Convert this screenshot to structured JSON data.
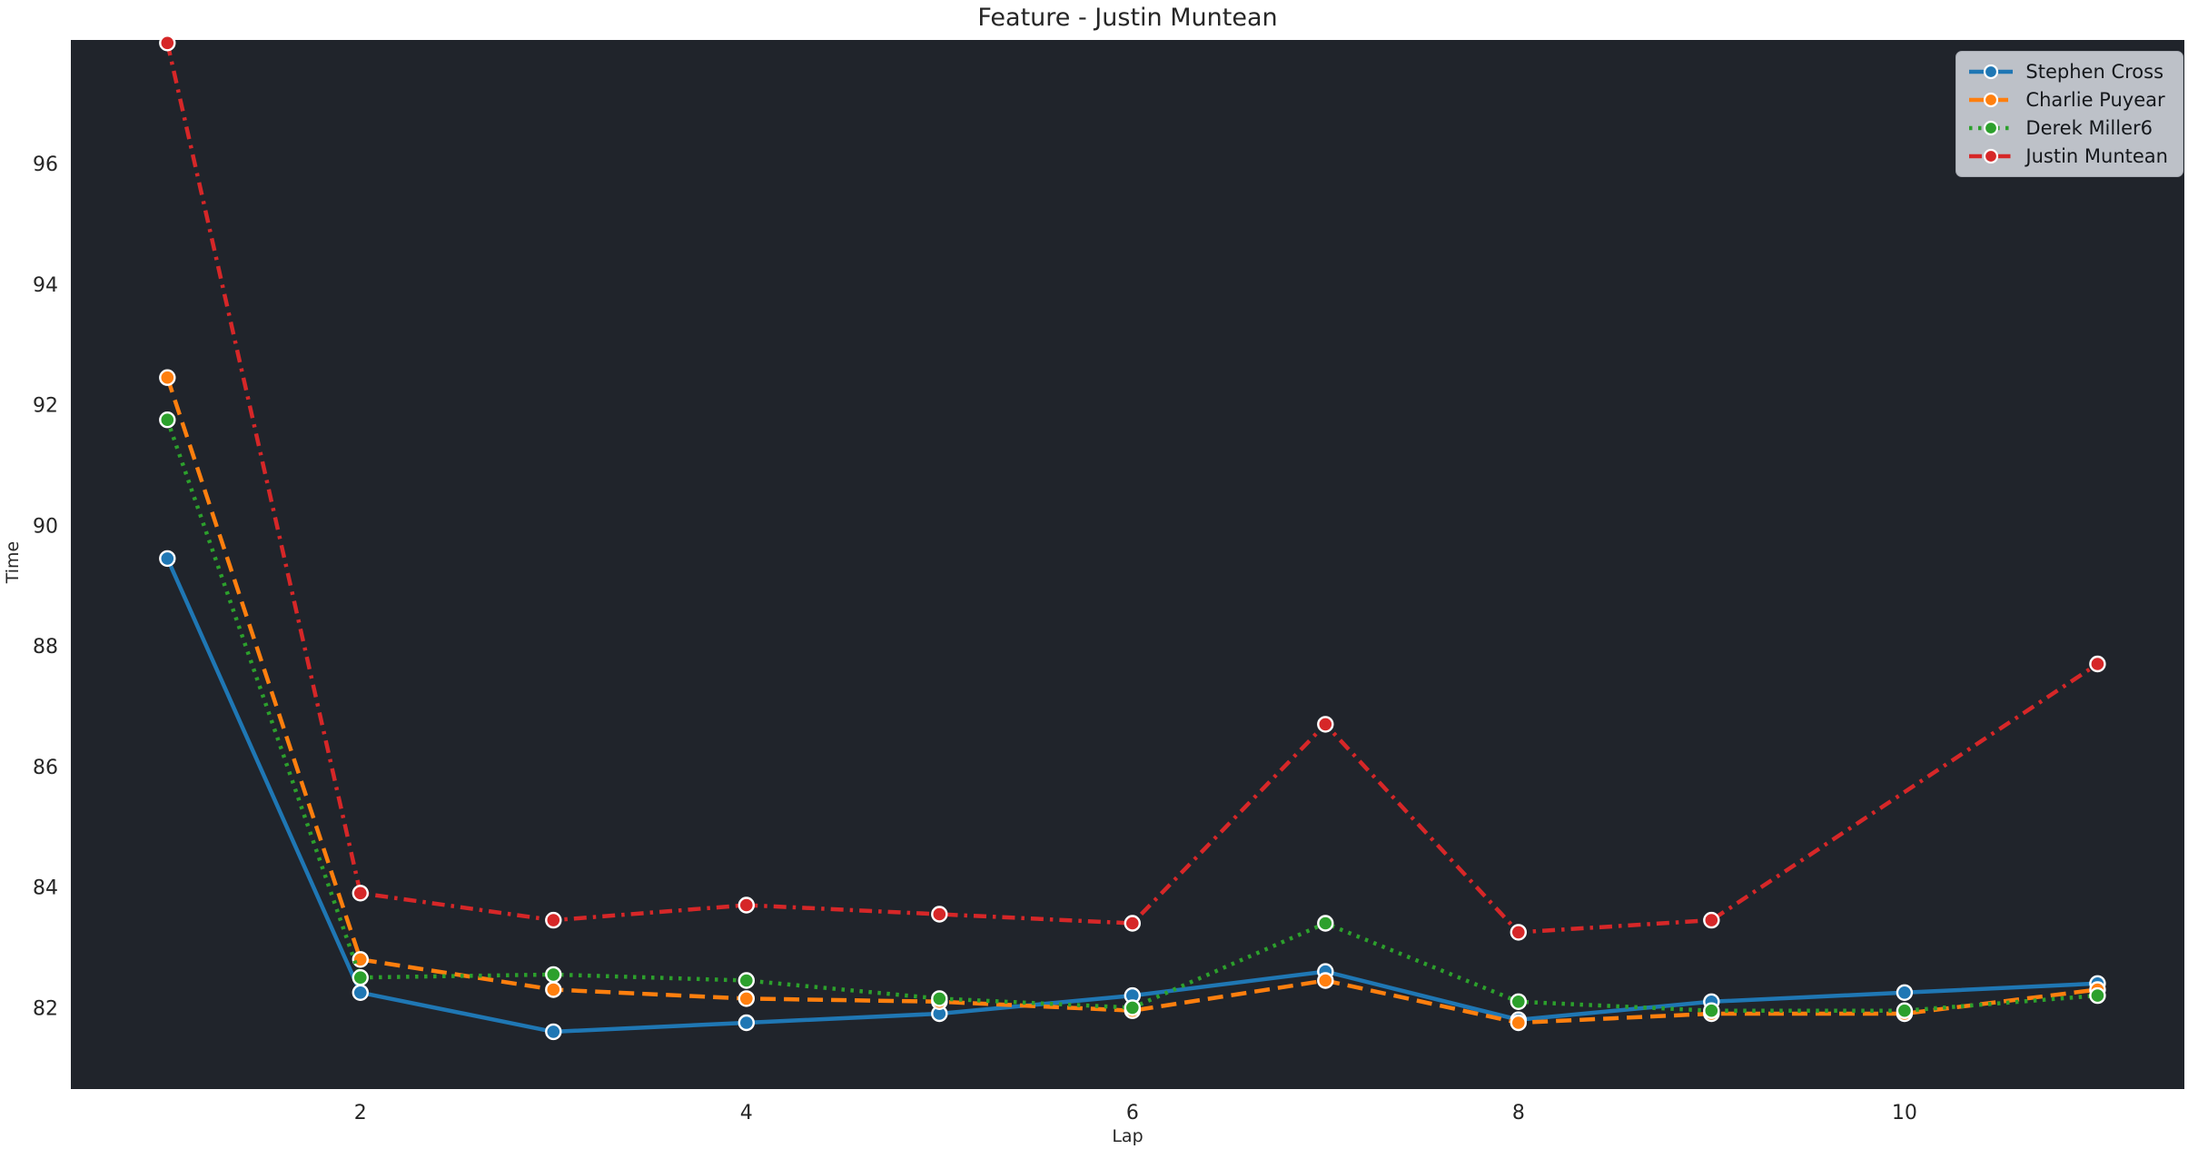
{
  "title": "Feature - Justin Muntean",
  "plot": {
    "bg_color": "#20242b",
    "fig_bg_color": "#ffffff",
    "text_color": "#262626",
    "legend_bg_color": "#cbcfd6",
    "marker_edge_color": "#ffffff"
  },
  "chart_data": {
    "type": "line",
    "title": "Feature - Justin Muntean",
    "xlabel": "Lap",
    "ylabel": "Time",
    "x": [
      1,
      2,
      3,
      4,
      5,
      6,
      7,
      8,
      9,
      10,
      11
    ],
    "xticks": [
      2,
      4,
      6,
      8,
      10
    ],
    "yticks": [
      82,
      84,
      86,
      88,
      90,
      92,
      94,
      96
    ],
    "xlim": [
      0.5,
      11.45
    ],
    "ylim": [
      80.65,
      98.05
    ],
    "grid": false,
    "legend_position": "upper right",
    "series": [
      {
        "name": "Stephen Cross",
        "color": "#1f77b4",
        "dash": "solid",
        "values": [
          89.45,
          82.25,
          81.6,
          81.75,
          81.9,
          82.2,
          82.6,
          81.8,
          82.1,
          82.25,
          82.4
        ]
      },
      {
        "name": "Charlie Puyear",
        "color": "#ff7f0e",
        "dash": "dashed",
        "values": [
          92.45,
          82.8,
          82.3,
          82.15,
          82.1,
          81.95,
          82.45,
          81.75,
          81.9,
          81.9,
          82.3
        ]
      },
      {
        "name": "Derek Miller6",
        "color": "#2ca02c",
        "dash": "dotted",
        "values": [
          91.75,
          82.5,
          82.55,
          82.45,
          82.15,
          82.0,
          83.4,
          82.1,
          81.95,
          81.95,
          82.2
        ]
      },
      {
        "name": "Justin Muntean",
        "color": "#d62728",
        "dash": "dashdot",
        "values": [
          98.0,
          83.9,
          83.45,
          83.7,
          83.55,
          83.4,
          86.7,
          83.25,
          83.45,
          null,
          87.7
        ]
      }
    ]
  }
}
